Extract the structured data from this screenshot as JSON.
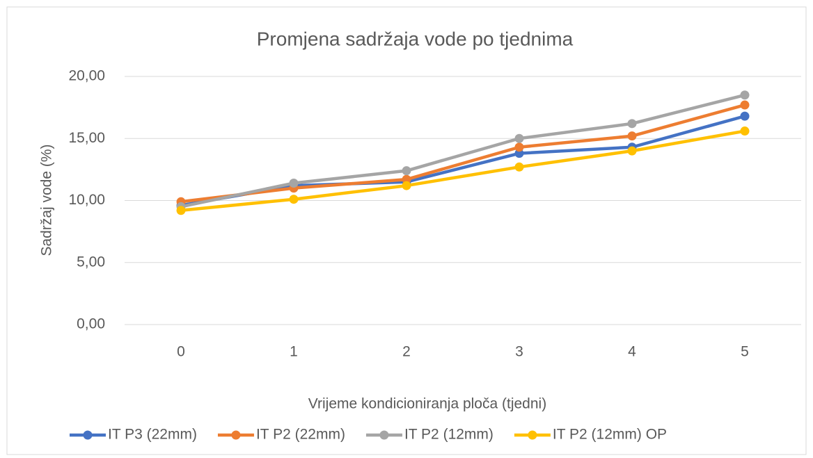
{
  "chart_data": {
    "type": "line",
    "title": "Promjena sadržaja vode po tjednima",
    "x_label": "Vrijeme kondicioniranja ploča (tjedni)",
    "y_label": "Sadržaj vode (%)",
    "categories": [
      "0",
      "1",
      "2",
      "3",
      "4",
      "5"
    ],
    "series": [
      {
        "name": "IT P3 (22mm)",
        "color": "#4472c4",
        "values": [
          9.6,
          11.2,
          11.5,
          13.8,
          14.3,
          16.8
        ]
      },
      {
        "name": "IT P2 (22mm)",
        "color": "#ed7d31",
        "values": [
          9.9,
          11.0,
          11.7,
          14.3,
          15.2,
          17.7
        ]
      },
      {
        "name": "IT P2 (12mm)",
        "color": "#a5a5a5",
        "values": [
          9.5,
          11.4,
          12.4,
          15.0,
          16.2,
          18.5
        ]
      },
      {
        "name": "IT P2 (12mm) OP",
        "color": "#ffc000",
        "values": [
          9.2,
          10.1,
          11.2,
          12.7,
          14.0,
          15.6
        ]
      }
    ],
    "ylim": [
      0,
      20
    ],
    "yticks": [
      {
        "value": 0,
        "label": "0,00"
      },
      {
        "value": 5,
        "label": "5,00"
      },
      {
        "value": 10,
        "label": "10,00"
      },
      {
        "value": 15,
        "label": "15,00"
      },
      {
        "value": 20,
        "label": "20,00"
      }
    ],
    "grid": true,
    "legend": "bottom"
  }
}
